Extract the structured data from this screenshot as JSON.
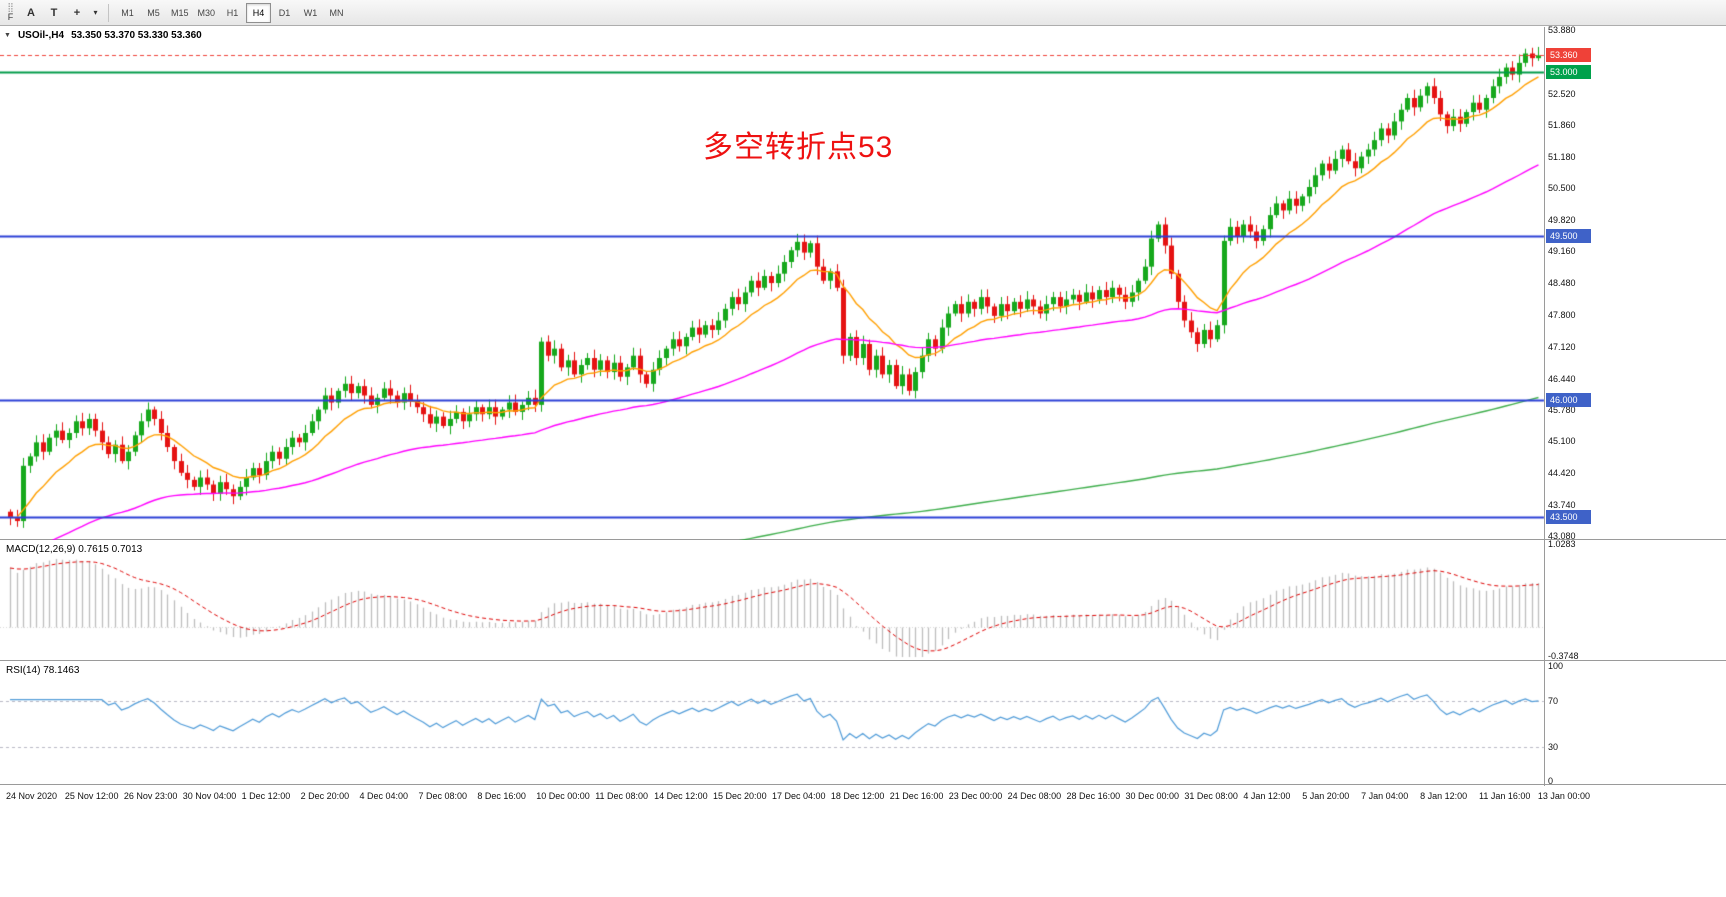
{
  "toolbar": {
    "fast_nav": "F",
    "annotation_tools": [
      "A",
      "T"
    ],
    "timeframes": [
      "M1",
      "M5",
      "M15",
      "M30",
      "H1",
      "H4",
      "D1",
      "W1",
      "MN"
    ],
    "active_timeframe": "H4"
  },
  "chart": {
    "collapse_icon": "▼",
    "title": "USOil-,H4",
    "ohlc": "53.350 53.370 53.330 53.360",
    "annotation": {
      "text": "多空转折点53",
      "color": "#ee1111"
    },
    "price_max": 53.88,
    "price_min": 43.08,
    "axis_labels": [
      "53.880",
      "52.520",
      "51.860",
      "51.180",
      "50.500",
      "49.820",
      "49.160",
      "48.480",
      "47.800",
      "47.120",
      "46.440",
      "45.780",
      "45.100",
      "44.420",
      "43.740",
      "43.080"
    ],
    "badges": [
      {
        "text": "53.360",
        "price": 53.36,
        "color": "#ef4138"
      },
      {
        "text": "53.000",
        "price": 53.0,
        "color": "#00a14b"
      },
      {
        "text": "49.500",
        "price": 49.5,
        "color": "#3f62c8"
      },
      {
        "text": "46.000",
        "price": 46.0,
        "color": "#3f62c8"
      },
      {
        "text": "43.500",
        "price": 43.5,
        "color": "#3f62c8"
      }
    ],
    "hlines": [
      {
        "price": 53.0,
        "color": "#009b48",
        "width": 2
      },
      {
        "price": 49.5,
        "color": "#2b3fd6",
        "width": 2
      },
      {
        "price": 46.0,
        "color": "#2b3fd6",
        "width": 2
      },
      {
        "price": 43.5,
        "color": "#2b3fd6",
        "width": 2
      }
    ],
    "current_price_line": {
      "price": 53.36,
      "color": "#ef4138"
    },
    "time_labels": [
      "24 Nov 2020",
      "25 Nov 12:00",
      "26 Nov 23:00",
      "30 Nov 04:00",
      "1 Dec 12:00",
      "2 Dec 20:00",
      "4 Dec 04:00",
      "7 Dec 08:00",
      "8 Dec 16:00",
      "10 Dec 00:00",
      "11 Dec 08:00",
      "14 Dec 12:00",
      "15 Dec 20:00",
      "17 Dec 04:00",
      "18 Dec 12:00",
      "21 Dec 16:00",
      "23 Dec 00:00",
      "24 Dec 08:00",
      "28 Dec 16:00",
      "30 Dec 00:00",
      "31 Dec 08:00",
      "4 Jan 12:00",
      "5 Jan 20:00",
      "7 Jan 04:00",
      "8 Jan 12:00",
      "11 Jan 16:00",
      "13 Jan 00:00"
    ]
  },
  "chart_data": {
    "type": "candlestick",
    "symbol": "USOil",
    "timeframe": "H4",
    "candle_up_color": "#16a81c",
    "candle_down_color": "#e51212",
    "closes": [
      43.5,
      43.42,
      44.6,
      44.8,
      45.1,
      44.9,
      45.2,
      45.35,
      45.15,
      45.3,
      45.55,
      45.4,
      45.6,
      45.35,
      45.1,
      44.85,
      45.05,
      44.7,
      44.9,
      45.25,
      45.55,
      45.8,
      45.6,
      45.3,
      45.0,
      44.7,
      44.45,
      44.3,
      44.15,
      44.35,
      44.2,
      44.0,
      44.25,
      44.1,
      43.95,
      44.15,
      44.35,
      44.55,
      44.4,
      44.7,
      44.9,
      44.75,
      45.0,
      45.2,
      45.1,
      45.3,
      45.55,
      45.8,
      46.1,
      45.95,
      46.2,
      46.35,
      46.15,
      46.3,
      46.1,
      45.9,
      46.05,
      46.25,
      46.1,
      45.95,
      46.15,
      46.0,
      45.85,
      45.7,
      45.5,
      45.65,
      45.45,
      45.6,
      45.75,
      45.55,
      45.7,
      45.85,
      45.7,
      45.85,
      45.65,
      45.8,
      45.95,
      45.75,
      45.9,
      46.05,
      45.9,
      47.25,
      46.95,
      47.1,
      46.7,
      46.85,
      46.55,
      46.75,
      46.9,
      46.65,
      46.85,
      46.6,
      46.8,
      46.5,
      46.7,
      46.95,
      46.55,
      46.35,
      46.65,
      46.9,
      47.1,
      47.3,
      47.15,
      47.35,
      47.55,
      47.4,
      47.6,
      47.5,
      47.7,
      47.95,
      48.2,
      48.05,
      48.3,
      48.55,
      48.4,
      48.65,
      48.5,
      48.7,
      48.95,
      49.2,
      49.38,
      49.15,
      49.35,
      48.85,
      48.55,
      48.75,
      48.4,
      46.95,
      47.35,
      46.9,
      47.2,
      46.65,
      46.95,
      46.55,
      46.75,
      46.3,
      46.55,
      46.2,
      46.6,
      46.95,
      47.3,
      47.1,
      47.55,
      47.85,
      48.05,
      47.85,
      48.1,
      47.95,
      48.2,
      48.0,
      47.8,
      48.05,
      47.9,
      48.1,
      47.95,
      48.15,
      48.0,
      47.85,
      48.05,
      48.2,
      48.0,
      48.15,
      48.25,
      48.1,
      48.3,
      48.15,
      48.35,
      48.2,
      48.4,
      48.25,
      48.1,
      48.3,
      48.55,
      48.85,
      49.45,
      49.75,
      49.3,
      48.7,
      48.1,
      47.7,
      47.45,
      47.2,
      47.5,
      47.3,
      47.6,
      49.4,
      49.7,
      49.5,
      49.75,
      49.6,
      49.4,
      49.65,
      49.95,
      50.2,
      50.05,
      50.3,
      50.15,
      50.35,
      50.55,
      50.8,
      51.05,
      50.9,
      51.15,
      51.35,
      51.1,
      50.95,
      51.2,
      51.35,
      51.55,
      51.8,
      51.65,
      51.95,
      52.2,
      52.45,
      52.25,
      52.5,
      52.7,
      52.45,
      52.1,
      51.85,
      52.05,
      51.9,
      52.15,
      52.35,
      52.2,
      52.45,
      52.7,
      52.9,
      53.1,
      52.95,
      53.2,
      53.4,
      53.3,
      53.36
    ],
    "moving_averages": [
      {
        "name": "fast",
        "color": "#ff9f00",
        "alpha": 0.15,
        "seed": 43.5
      },
      {
        "name": "mid",
        "color": "#ff00ff",
        "alpha": 0.03,
        "seed": 42.6
      },
      {
        "name": "slow",
        "color": "#3fae4c",
        "alpha": 0.005,
        "seed": 40.8
      }
    ]
  },
  "macd": {
    "label": "MACD(12,26,9) 0.7615 0.7013",
    "fast": 12,
    "slow": 26,
    "signal": 9,
    "value_main": 0.7615,
    "value_signal": 0.7013,
    "scale_max": 1.0283,
    "scale_min": -0.3748,
    "axis_labels": [
      "1.0283",
      "-0.3748"
    ],
    "hist_color": "#bdbdbd",
    "signal_color": "#dd0000"
  },
  "rsi": {
    "label": "RSI(14) 78.1463",
    "period": 14,
    "value": 78.1463,
    "levels": [
      "100",
      "70",
      "30",
      "0"
    ],
    "level_values": [
      100,
      70,
      30,
      0
    ],
    "dashed_levels": [
      70,
      30
    ],
    "line_color": "#4f9bd8"
  }
}
